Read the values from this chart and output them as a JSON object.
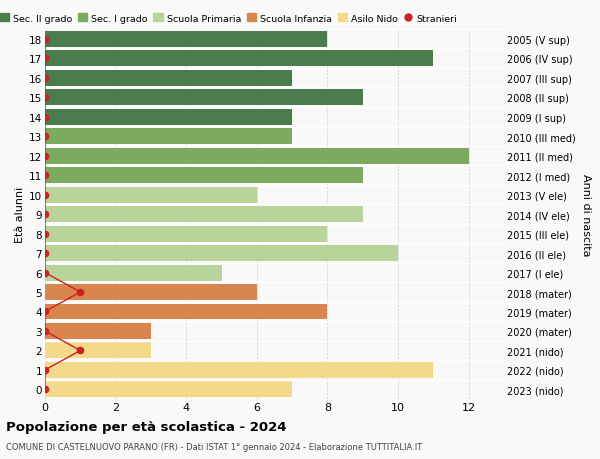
{
  "ages": [
    18,
    17,
    16,
    15,
    14,
    13,
    12,
    11,
    10,
    9,
    8,
    7,
    6,
    5,
    4,
    3,
    2,
    1,
    0
  ],
  "anni_nascita": [
    "2005 (V sup)",
    "2006 (IV sup)",
    "2007 (III sup)",
    "2008 (II sup)",
    "2009 (I sup)",
    "2010 (III med)",
    "2011 (II med)",
    "2012 (I med)",
    "2013 (V ele)",
    "2014 (IV ele)",
    "2015 (III ele)",
    "2016 (II ele)",
    "2017 (I ele)",
    "2018 (mater)",
    "2019 (mater)",
    "2020 (mater)",
    "2021 (nido)",
    "2022 (nido)",
    "2023 (nido)"
  ],
  "bar_values": [
    8,
    11,
    7,
    9,
    7,
    7,
    12,
    9,
    6,
    9,
    8,
    10,
    5,
    6,
    8,
    3,
    3,
    11,
    7
  ],
  "bar_colors": [
    "#4a7c4e",
    "#4a7c4e",
    "#4a7c4e",
    "#4a7c4e",
    "#4a7c4e",
    "#7dab5e",
    "#7dab5e",
    "#7dab5e",
    "#b8d49a",
    "#b8d49a",
    "#b8d49a",
    "#b8d49a",
    "#b8d49a",
    "#d9854e",
    "#d9854e",
    "#d9854e",
    "#f5d98b",
    "#f5d98b",
    "#f5d98b"
  ],
  "stranieri_x": [
    0,
    0,
    0,
    0,
    0,
    0,
    0,
    0,
    0,
    0,
    0,
    0,
    0,
    1,
    0,
    0,
    1,
    0,
    0
  ],
  "legend_labels": [
    "Sec. II grado",
    "Sec. I grado",
    "Scuola Primaria",
    "Scuola Infanzia",
    "Asilo Nido",
    "Stranieri"
  ],
  "legend_colors": [
    "#4a7c4e",
    "#7dab5e",
    "#b8d49a",
    "#d9854e",
    "#f5d98b",
    "#cc2222"
  ],
  "ylabel_left": "Età alunni",
  "ylabel_right": "Anni di nascita",
  "title": "Popolazione per età scolastica - 2024",
  "subtitle": "COMUNE DI CASTELNUOVO PARANO (FR) - Dati ISTAT 1° gennaio 2024 - Elaborazione TUTTITALIA.IT",
  "xlim": [
    0,
    13
  ],
  "xticks": [
    0,
    2,
    4,
    6,
    8,
    10,
    12
  ],
  "bg_color": "#f9f9f9",
  "bar_height": 0.82,
  "stranieri_dot_color": "#cc2222",
  "stranieri_line_color": "#cc2222",
  "grid_color": "#cccccc",
  "white_line_color": "#ffffff"
}
